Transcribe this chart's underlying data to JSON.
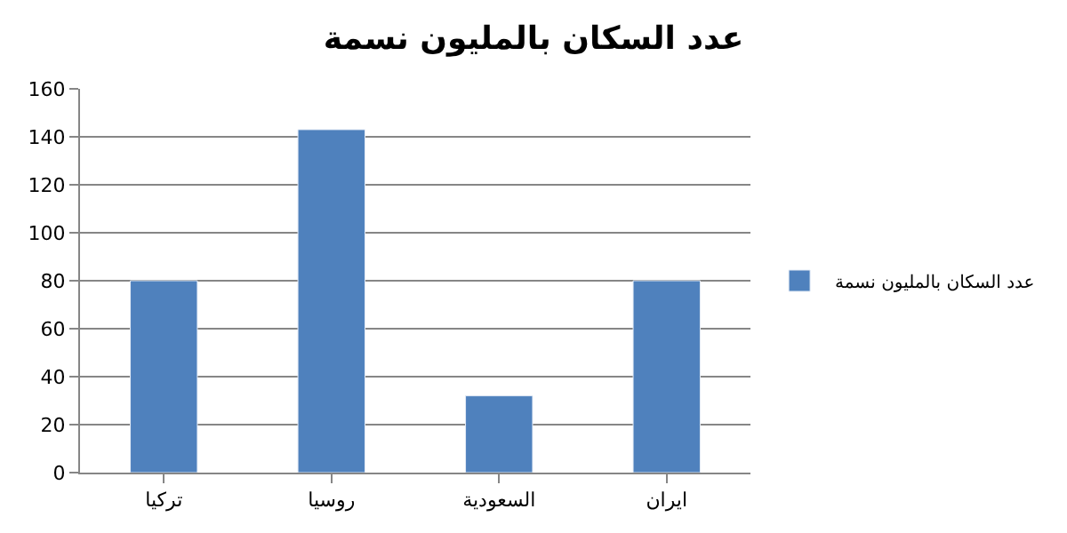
{
  "chart_data": {
    "type": "bar",
    "title": "عدد السكان بالمليون نسمة",
    "categories": [
      "تركيا",
      "روسيا",
      "السعودية",
      "ايران"
    ],
    "series": [
      {
        "name": "عدد السكان بالمليون نسمة",
        "color": "#4f81bd",
        "values": [
          80,
          143,
          32,
          80
        ]
      }
    ],
    "ylim": [
      0,
      160
    ],
    "yticks": [
      0,
      20,
      40,
      60,
      80,
      100,
      120,
      140,
      160
    ],
    "grid": "y",
    "legend": "right"
  }
}
